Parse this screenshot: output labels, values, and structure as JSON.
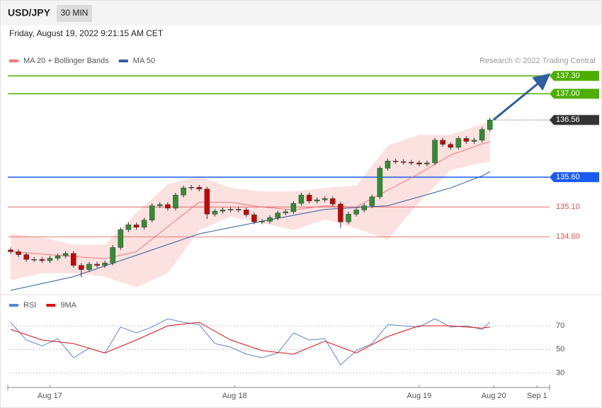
{
  "header": {
    "symbol": "USD/JPY",
    "interval": "30 MIN",
    "timestamp": "Friday, August 19, 2022 9:21:15 AM CET"
  },
  "chart_data": [
    {
      "type": "candlestick",
      "credit": "Research © 2022 Trading Central",
      "up_color": "#2f8f2f",
      "down_color": "#cc0000",
      "xlim": [
        0,
        68.6
      ],
      "ylim": [
        133.7,
        137.8
      ],
      "open": [
        134.38,
        134.35,
        134.3,
        134.22,
        134.22,
        134.2,
        134.24,
        134.28,
        134.32,
        134.12,
        134.05,
        134.14,
        134.12,
        134.16,
        134.42,
        134.72,
        134.8,
        134.76,
        134.88,
        135.12,
        135.14,
        135.08,
        135.3,
        135.42,
        135.43,
        135.4,
        134.98,
        135.03,
        135.05,
        135.06,
        135.05,
        134.97,
        134.85,
        134.86,
        134.92,
        135.0,
        135.02,
        135.16,
        135.3,
        135.2,
        135.22,
        135.24,
        135.15,
        134.85,
        134.98,
        135.05,
        135.12,
        135.27,
        135.75,
        135.87,
        135.86,
        135.85,
        135.84,
        135.82,
        135.84,
        136.22,
        136.15,
        136.1,
        136.25,
        136.2,
        136.22,
        136.4
      ],
      "high": [
        134.42,
        134.39,
        134.34,
        134.26,
        134.26,
        134.28,
        134.32,
        134.36,
        134.36,
        134.16,
        134.18,
        134.18,
        134.2,
        134.46,
        134.76,
        134.84,
        134.84,
        134.92,
        135.16,
        135.18,
        135.18,
        135.34,
        135.46,
        135.47,
        135.47,
        135.44,
        135.07,
        135.09,
        135.1,
        135.1,
        135.09,
        135.01,
        134.9,
        134.96,
        135.04,
        135.06,
        135.2,
        135.34,
        135.34,
        135.26,
        135.28,
        135.28,
        135.19,
        135.02,
        135.09,
        135.16,
        135.31,
        135.79,
        135.91,
        135.91,
        135.9,
        135.89,
        135.88,
        135.88,
        136.26,
        136.26,
        136.19,
        136.29,
        136.29,
        136.26,
        136.44,
        136.6
      ],
      "low": [
        134.31,
        134.26,
        134.18,
        134.18,
        134.16,
        134.16,
        134.2,
        134.24,
        134.08,
        133.92,
        134.01,
        134.08,
        134.08,
        134.12,
        134.38,
        134.68,
        134.72,
        134.72,
        134.84,
        135.08,
        135.04,
        135.04,
        135.26,
        135.38,
        135.36,
        134.9,
        134.94,
        134.99,
        135.01,
        135.01,
        134.93,
        134.81,
        134.81,
        134.82,
        134.88,
        134.96,
        134.98,
        135.12,
        135.16,
        135.16,
        135.18,
        135.11,
        134.75,
        134.81,
        134.94,
        135.01,
        135.08,
        135.23,
        135.71,
        135.82,
        135.81,
        135.8,
        135.78,
        135.78,
        135.8,
        136.11,
        136.06,
        136.06,
        136.16,
        136.16,
        136.18,
        136.36
      ],
      "close": [
        134.35,
        134.3,
        134.22,
        134.22,
        134.2,
        134.24,
        134.28,
        134.32,
        134.12,
        134.05,
        134.14,
        134.12,
        134.16,
        134.42,
        134.72,
        134.8,
        134.76,
        134.88,
        135.12,
        135.14,
        135.08,
        135.3,
        135.42,
        135.43,
        135.4,
        134.98,
        135.03,
        135.05,
        135.06,
        135.05,
        134.97,
        134.85,
        134.86,
        134.92,
        135.0,
        135.02,
        135.16,
        135.3,
        135.2,
        135.22,
        135.24,
        135.15,
        134.85,
        134.98,
        135.05,
        135.12,
        135.27,
        135.75,
        135.87,
        135.86,
        135.85,
        135.84,
        135.82,
        135.84,
        136.22,
        136.15,
        136.1,
        136.25,
        136.2,
        136.22,
        136.4,
        136.56
      ],
      "series": [
        {
          "name": "MA 20 + Bollinger Bands",
          "color": "#f07878",
          "x": [
            0,
            4,
            8,
            12,
            16,
            20,
            24,
            28,
            32,
            36,
            40,
            44,
            48,
            52,
            56,
            60,
            61
          ],
          "values": [
            134.35,
            134.31,
            134.27,
            134.23,
            134.35,
            134.77,
            135.18,
            135.18,
            135.1,
            135.05,
            135.12,
            135.1,
            135.38,
            135.66,
            135.97,
            136.16,
            136.19
          ],
          "upper": [
            134.65,
            134.59,
            134.47,
            134.47,
            135.0,
            135.48,
            135.62,
            135.42,
            135.36,
            135.36,
            135.42,
            135.46,
            136.13,
            136.31,
            136.31,
            136.49,
            136.53
          ],
          "lower": [
            133.87,
            133.99,
            133.99,
            133.93,
            133.75,
            133.99,
            134.71,
            134.94,
            134.83,
            134.71,
            134.89,
            134.74,
            134.55,
            135.18,
            135.72,
            135.84,
            135.86
          ]
        },
        {
          "name": "MA 50",
          "color": "#2f5f9f",
          "x": [
            0,
            8,
            16,
            24,
            32,
            40,
            48,
            52,
            56,
            60,
            61
          ],
          "values": [
            133.7,
            133.93,
            134.29,
            134.65,
            134.86,
            135.06,
            135.12,
            135.27,
            135.42,
            135.62,
            135.69
          ]
        }
      ],
      "levels": [
        {
          "value": 137.3,
          "label": "137.30",
          "color": "#4caf00",
          "style": "box"
        },
        {
          "value": 137.0,
          "label": "137.00",
          "color": "#4caf00",
          "style": "box"
        },
        {
          "value": 136.56,
          "label": "136.56",
          "color": "#333333",
          "style": "dotted"
        },
        {
          "value": 135.6,
          "label": "135.60",
          "color": "#1a5cf0",
          "style": "box"
        },
        {
          "value": 135.1,
          "label": "135.10",
          "color": "#e05050",
          "style": "text"
        },
        {
          "value": 134.6,
          "label": "134.60",
          "color": "#e05050",
          "style": "text"
        }
      ]
    },
    {
      "type": "line",
      "xlim": [
        0,
        68.6
      ],
      "ylim": [
        22,
        94
      ],
      "yticks": [
        30,
        50,
        70
      ],
      "grid": true,
      "xticks": [
        {
          "value": 5,
          "label": "Aug 17"
        },
        {
          "value": 28.5,
          "label": "Aug 18"
        },
        {
          "value": 52,
          "label": "Aug 19"
        },
        {
          "value": 61.5,
          "label": "Aug 20"
        },
        {
          "value": 67,
          "label": "Sep 1"
        }
      ],
      "series": [
        {
          "name": "RSI",
          "color": "#5b84d6",
          "x": [
            0,
            2,
            4,
            6,
            8,
            10,
            12,
            14,
            16,
            18,
            20,
            22,
            24,
            26,
            28,
            30,
            32,
            34,
            36,
            38,
            40,
            42,
            44,
            46,
            48,
            50,
            52,
            54,
            56,
            58,
            60,
            61
          ],
          "values": [
            73,
            58,
            53,
            59,
            43,
            51,
            47,
            69,
            64,
            69,
            76,
            73,
            71,
            55,
            52,
            46,
            43,
            47,
            64,
            58,
            59,
            37,
            49,
            55,
            71,
            70,
            69,
            76,
            69,
            70,
            67,
            73
          ]
        },
        {
          "name": "9MA",
          "color": "#e01010",
          "x": [
            0,
            4,
            8,
            12,
            16,
            20,
            24,
            28,
            32,
            36,
            40,
            44,
            48,
            52,
            56,
            60,
            61
          ],
          "values": [
            67,
            58,
            55,
            47,
            58,
            70,
            73,
            58,
            49,
            46,
            57,
            47,
            61,
            70,
            70,
            68,
            69
          ]
        }
      ]
    }
  ]
}
